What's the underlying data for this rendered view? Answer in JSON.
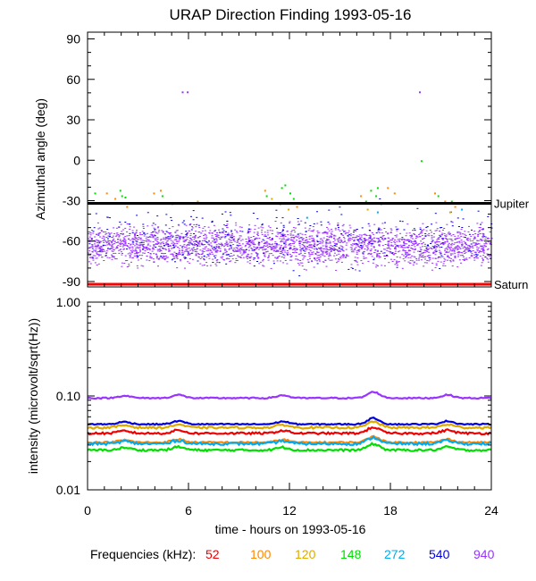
{
  "chart_data": [
    {
      "type": "scatter",
      "title": "URAP Direction Finding  1993-05-16",
      "ylabel": "Azimuthal angle (deg)",
      "xlim": [
        0,
        24
      ],
      "ylim": [
        -94,
        95
      ],
      "yticks": [
        90,
        60,
        30,
        0,
        -30,
        -60,
        -90
      ],
      "ytick_labels": [
        "90",
        "60",
        "30",
        "0",
        "-30",
        "-60",
        "-90"
      ],
      "reference_lines": [
        {
          "label": "Jupiter",
          "y": -32,
          "color": "#000000"
        },
        {
          "label": "Saturn",
          "y": -92,
          "color": "#ff0000"
        }
      ],
      "series": [
        {
          "name": "940",
          "color": "#9933ff",
          "band": {
            "center": -63,
            "spread": 14,
            "count": 2600
          },
          "points": [
            [
              5.6,
              51
            ],
            [
              5.9,
              51
            ],
            [
              19.7,
              51
            ]
          ]
        },
        {
          "name": "540",
          "color": "#0000dd",
          "band": {
            "center": -57,
            "spread": 22,
            "count": 320
          },
          "points": []
        },
        {
          "name": "148",
          "color": "#00dd00",
          "points": [
            [
              1.9,
              -22
            ],
            [
              2.0,
              -26
            ],
            [
              2.2,
              -27
            ],
            [
              2.3,
              -31
            ],
            [
              11.5,
              -20
            ],
            [
              11.7,
              -18
            ],
            [
              12.0,
              -24
            ],
            [
              12.2,
              -28
            ],
            [
              11.4,
              -32
            ],
            [
              10.6,
              -26
            ],
            [
              16.5,
              -30
            ],
            [
              16.8,
              -22
            ],
            [
              17.1,
              -26
            ],
            [
              17.4,
              -32
            ],
            [
              17.2,
              -20
            ],
            [
              20.8,
              -26
            ],
            [
              21.6,
              -30
            ],
            [
              4.4,
              -26
            ],
            [
              0.4,
              -24
            ],
            [
              19.8,
              0
            ]
          ]
        },
        {
          "name": "100",
          "color": "#ff8800",
          "points": [
            [
              1.1,
              -24
            ],
            [
              1.6,
              -28
            ],
            [
              2.3,
              -34
            ],
            [
              3.9,
              -24
            ],
            [
              4.3,
              -22
            ],
            [
              5.0,
              -32
            ],
            [
              10.5,
              -22
            ],
            [
              12.4,
              -34
            ],
            [
              16.2,
              -26
            ],
            [
              17.8,
              -20
            ],
            [
              18.2,
              -24
            ],
            [
              20.6,
              -24
            ],
            [
              21.2,
              -30
            ],
            [
              21.8,
              -34
            ]
          ]
        },
        {
          "name": "120",
          "color": "#ddaa00",
          "points": [
            [
              6.5,
              -30
            ],
            [
              10.9,
              -28
            ],
            [
              11.9,
              -36
            ],
            [
              16.6,
              -36
            ],
            [
              21.5,
              -38
            ]
          ]
        },
        {
          "name": "272",
          "color": "#00aaee",
          "points": [
            [
              13.0,
              -42
            ],
            [
              17.2,
              -38
            ],
            [
              22.2,
              -36
            ]
          ]
        }
      ]
    },
    {
      "type": "line",
      "ylabel": "intensity (microvolt/sqrt(Hz))",
      "xlabel": "time - hours on 1993-05-16",
      "xlim": [
        0,
        24
      ],
      "ylim": [
        0.01,
        1.0
      ],
      "yscale": "log",
      "xticks": [
        0,
        6,
        12,
        18,
        24
      ],
      "xtick_labels": [
        "0",
        "6",
        "12",
        "18",
        "24"
      ],
      "yticks": [
        1.0,
        0.1,
        0.01
      ],
      "ytick_labels": [
        "1.00",
        "0.10",
        "0.01"
      ],
      "series": [
        {
          "name": "940",
          "color": "#9933ff",
          "base": 0.095,
          "noise": 0.03
        },
        {
          "name": "540",
          "color": "#0000dd",
          "base": 0.05,
          "noise": 0.03
        },
        {
          "name": "120",
          "color": "#ddaa00",
          "base": 0.046,
          "noise": 0.05
        },
        {
          "name": "52",
          "color": "#ee0000",
          "base": 0.04,
          "noise": 0.05
        },
        {
          "name": "100",
          "color": "#ff8800",
          "base": 0.032,
          "noise": 0.04
        },
        {
          "name": "272",
          "color": "#00aaee",
          "base": 0.031,
          "noise": 0.06
        },
        {
          "name": "148",
          "color": "#00dd00",
          "base": 0.0265,
          "noise": 0.05
        }
      ]
    }
  ],
  "legend": {
    "label": "Frequencies (kHz):",
    "items": [
      {
        "value": "52",
        "color": "#ee0000"
      },
      {
        "value": "100",
        "color": "#ff8800"
      },
      {
        "value": "120",
        "color": "#ddaa00"
      },
      {
        "value": "148",
        "color": "#00dd00"
      },
      {
        "value": "272",
        "color": "#00aaee"
      },
      {
        "value": "540",
        "color": "#0000dd"
      },
      {
        "value": "940",
        "color": "#9933ff"
      }
    ]
  }
}
